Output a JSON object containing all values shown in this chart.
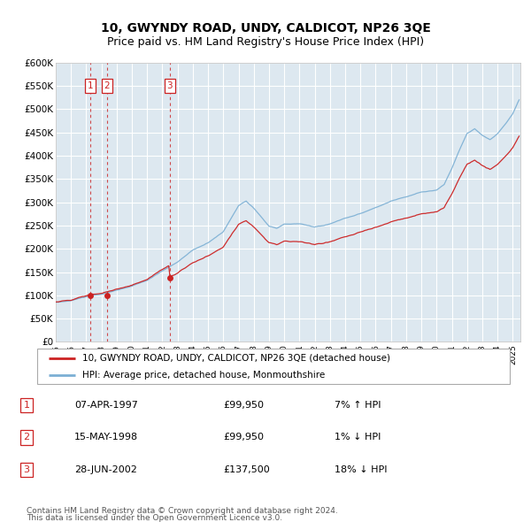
{
  "title": "10, GWYNDY ROAD, UNDY, CALDICOT, NP26 3QE",
  "subtitle": "Price paid vs. HM Land Registry's House Price Index (HPI)",
  "ylim": [
    0,
    600000
  ],
  "yticks": [
    0,
    50000,
    100000,
    150000,
    200000,
    250000,
    300000,
    350000,
    400000,
    450000,
    500000,
    550000,
    600000
  ],
  "ytick_labels": [
    "£0",
    "£50K",
    "£100K",
    "£150K",
    "£200K",
    "£250K",
    "£300K",
    "£350K",
    "£400K",
    "£450K",
    "£500K",
    "£550K",
    "£600K"
  ],
  "xlim_start": 1995.0,
  "xlim_end": 2025.5,
  "background_color": "#ffffff",
  "plot_bg_color": "#dde8f0",
  "grid_color": "#ffffff",
  "title_fontsize": 10,
  "subtitle_fontsize": 9,
  "red_color": "#cc2222",
  "blue_color": "#7bafd4",
  "legend_label_red": "10, GWYNDY ROAD, UNDY, CALDICOT, NP26 3QE (detached house)",
  "legend_label_blue": "HPI: Average price, detached house, Monmouthshire",
  "footer1": "Contains HM Land Registry data © Crown copyright and database right 2024.",
  "footer2": "This data is licensed under the Open Government Licence v3.0.",
  "sales": [
    {
      "num": 1,
      "date": "07-APR-1997",
      "price": 99950,
      "pct": "7%",
      "dir": "↑",
      "year": 1997.27
    },
    {
      "num": 2,
      "date": "15-MAY-1998",
      "price": 99950,
      "pct": "1%",
      "dir": "↓",
      "year": 1998.37
    },
    {
      "num": 3,
      "date": "28-JUN-2002",
      "price": 137500,
      "pct": "18%",
      "dir": "↓",
      "year": 2002.49
    }
  ],
  "hpi_base_jan1995": 85000,
  "hpi_base_apr1997": 96000,
  "sale1_price": 99950,
  "sale1_year": 1997.27,
  "sale2_price": 99950,
  "sale2_year": 1998.37,
  "sale3_price": 137500,
  "sale3_year": 2002.49
}
